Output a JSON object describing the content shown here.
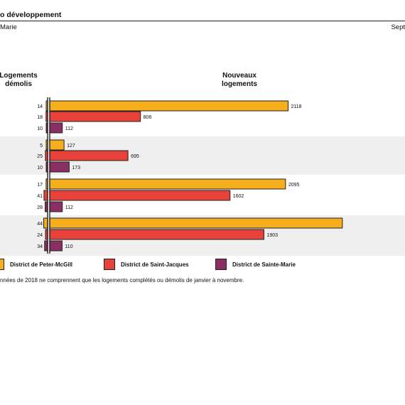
{
  "header": {
    "title": "o développement",
    "subtitle_left": "Marie",
    "subtitle_right": "Sept"
  },
  "colors": {
    "peter_mcgill": "#F7AE1C",
    "saint_jacques": "#E8413A",
    "sainte_marie": "#8A2E63",
    "band": "#EFEFEF"
  },
  "chart_data": {
    "type": "bar",
    "orientation": "horizontal-diverging",
    "left_header": "Logements démolis",
    "right_header": "Nouveaux logements",
    "series": [
      {
        "name": "District de Peter-McGill",
        "demolished": [
          14,
          5,
          17,
          44
        ],
        "new": [
          2118,
          127,
          2095,
          2600
        ]
      },
      {
        "name": "District de Saint-Jacques",
        "demolished": [
          18,
          25,
          41,
          24
        ],
        "new": [
          806,
          695,
          1602,
          1903
        ]
      },
      {
        "name": "District de Sainte-Marie",
        "demolished": [
          10,
          10,
          28,
          34
        ],
        "new": [
          112,
          173,
          112,
          110
        ]
      }
    ],
    "new_labels": [
      [
        "2118",
        "806",
        "112"
      ],
      [
        "127",
        "695",
        "173"
      ],
      [
        "2095",
        "1602",
        "112"
      ],
      [
        "",
        "1903",
        "110"
      ]
    ],
    "dem_labels": [
      [
        "14",
        "18",
        "10"
      ],
      [
        "5",
        "25",
        "10"
      ],
      [
        "17",
        "41",
        "28"
      ],
      [
        "44",
        "24",
        "34"
      ]
    ]
  },
  "legend": [
    {
      "label": "District de Peter-McGill",
      "color": "#F7AE1C"
    },
    {
      "label": "District de Saint-Jacques",
      "color": "#E8413A"
    },
    {
      "label": "District de Sainte-Marie",
      "color": "#8A2E63"
    }
  ],
  "note": "nnées de 2018 ne comprennent que les logements complétés ou démolis de janvier à novembre."
}
